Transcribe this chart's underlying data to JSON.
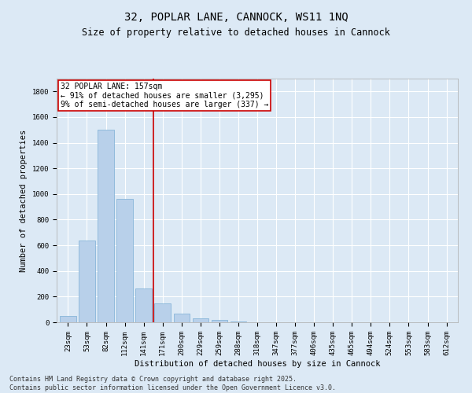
{
  "title_line1": "32, POPLAR LANE, CANNOCK, WS11 1NQ",
  "title_line2": "Size of property relative to detached houses in Cannock",
  "xlabel": "Distribution of detached houses by size in Cannock",
  "ylabel": "Number of detached properties",
  "categories": [
    "23sqm",
    "53sqm",
    "82sqm",
    "112sqm",
    "141sqm",
    "171sqm",
    "200sqm",
    "229sqm",
    "259sqm",
    "288sqm",
    "318sqm",
    "347sqm",
    "377sqm",
    "406sqm",
    "435sqm",
    "465sqm",
    "494sqm",
    "524sqm",
    "553sqm",
    "583sqm",
    "612sqm"
  ],
  "values": [
    50,
    640,
    1500,
    960,
    265,
    150,
    65,
    28,
    18,
    8,
    3,
    3,
    2,
    1,
    0,
    0,
    0,
    0,
    0,
    0,
    0
  ],
  "bar_color": "#b8d0ea",
  "bar_edge_color": "#7aadd4",
  "vline_color": "#cc0000",
  "annotation_text": "32 POPLAR LANE: 157sqm\n← 91% of detached houses are smaller (3,295)\n9% of semi-detached houses are larger (337) →",
  "annotation_box_color": "#ffffff",
  "annotation_box_edge": "#cc0000",
  "ylim": [
    0,
    1900
  ],
  "yticks": [
    0,
    200,
    400,
    600,
    800,
    1000,
    1200,
    1400,
    1600,
    1800
  ],
  "bg_color": "#dce9f5",
  "plot_bg_color": "#dce9f5",
  "footer_line1": "Contains HM Land Registry data © Crown copyright and database right 2025.",
  "footer_line2": "Contains public sector information licensed under the Open Government Licence v3.0.",
  "title_fontsize": 10,
  "subtitle_fontsize": 8.5,
  "axis_label_fontsize": 7.5,
  "tick_fontsize": 6.5,
  "annotation_fontsize": 7,
  "footer_fontsize": 6
}
